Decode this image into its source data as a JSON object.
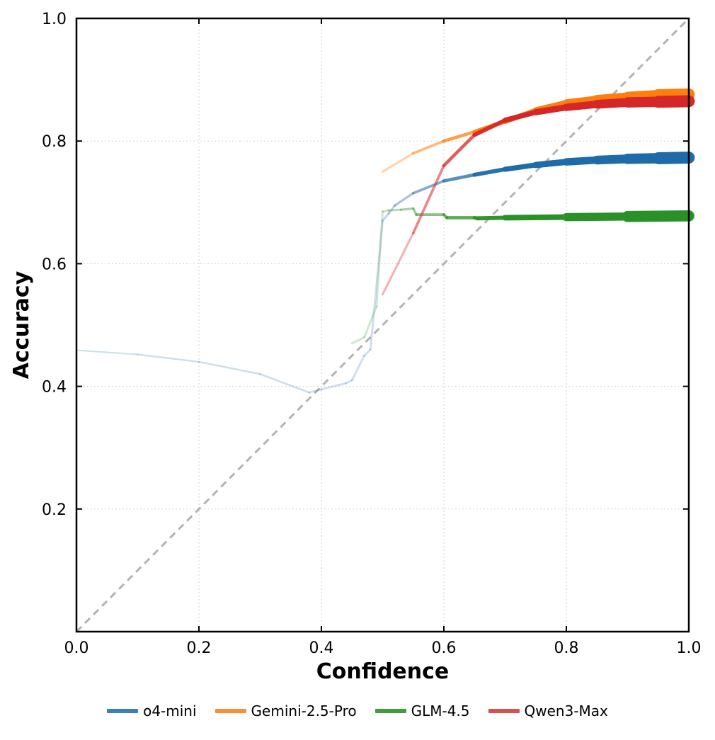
{
  "chart_data": {
    "type": "line",
    "title": "",
    "xlabel": "Confidence",
    "ylabel": "Accuracy",
    "xlim": [
      0,
      1
    ],
    "ylim": [
      0,
      1
    ],
    "x_ticks": [
      "0.0",
      "0.2",
      "0.4",
      "0.6",
      "0.8",
      "1.0"
    ],
    "y_ticks": [
      "0.2",
      "0.4",
      "0.6",
      "0.8",
      "1.0"
    ],
    "grid": true,
    "reference_line": {
      "name": "perfect calibration",
      "x": [
        0,
        1
      ],
      "y": [
        0,
        1
      ],
      "style": "dashed",
      "color": "#b0b0b0"
    },
    "legend_position": "bottom-center",
    "series": [
      {
        "name": "o4-mini",
        "color": "#1f6aa8",
        "legend_color": "#3a7fb6",
        "x": [
          0.0,
          0.1,
          0.2,
          0.3,
          0.38,
          0.4,
          0.44,
          0.45,
          0.47,
          0.48,
          0.5,
          0.51,
          0.52,
          0.55,
          0.6,
          0.65,
          0.7,
          0.75,
          0.8,
          0.85,
          0.9,
          0.95,
          1.0
        ],
        "y": [
          0.459,
          0.452,
          0.44,
          0.42,
          0.39,
          0.395,
          0.405,
          0.41,
          0.45,
          0.46,
          0.67,
          0.682,
          0.695,
          0.715,
          0.735,
          0.745,
          0.754,
          0.761,
          0.766,
          0.769,
          0.771,
          0.772,
          0.773
        ]
      },
      {
        "name": "Gemini-2.5-Pro",
        "color": "#ff7f0e",
        "legend_color": "#ff8c2e",
        "x": [
          0.5,
          0.55,
          0.6,
          0.65,
          0.7,
          0.75,
          0.8,
          0.85,
          0.9,
          0.95,
          1.0
        ],
        "y": [
          0.75,
          0.78,
          0.8,
          0.815,
          0.832,
          0.85,
          0.862,
          0.868,
          0.872,
          0.875,
          0.876
        ]
      },
      {
        "name": "GLM-4.5",
        "color": "#2a9128",
        "legend_color": "#3d9e3b",
        "x": [
          0.45,
          0.47,
          0.49,
          0.5,
          0.51,
          0.53,
          0.55,
          0.555,
          0.6,
          0.605,
          0.65,
          0.655,
          0.7,
          0.8,
          0.9,
          1.0
        ],
        "y": [
          0.47,
          0.48,
          0.53,
          0.685,
          0.687,
          0.688,
          0.69,
          0.68,
          0.68,
          0.675,
          0.675,
          0.674,
          0.675,
          0.676,
          0.677,
          0.678
        ]
      },
      {
        "name": "Qwen3-Max",
        "color": "#d62728",
        "legend_color": "#d94f4f",
        "x": [
          0.5,
          0.55,
          0.6,
          0.65,
          0.7,
          0.75,
          0.8,
          0.85,
          0.9,
          0.95,
          1.0
        ],
        "y": [
          0.55,
          0.65,
          0.76,
          0.81,
          0.834,
          0.847,
          0.855,
          0.86,
          0.863,
          0.864,
          0.865
        ]
      }
    ]
  }
}
